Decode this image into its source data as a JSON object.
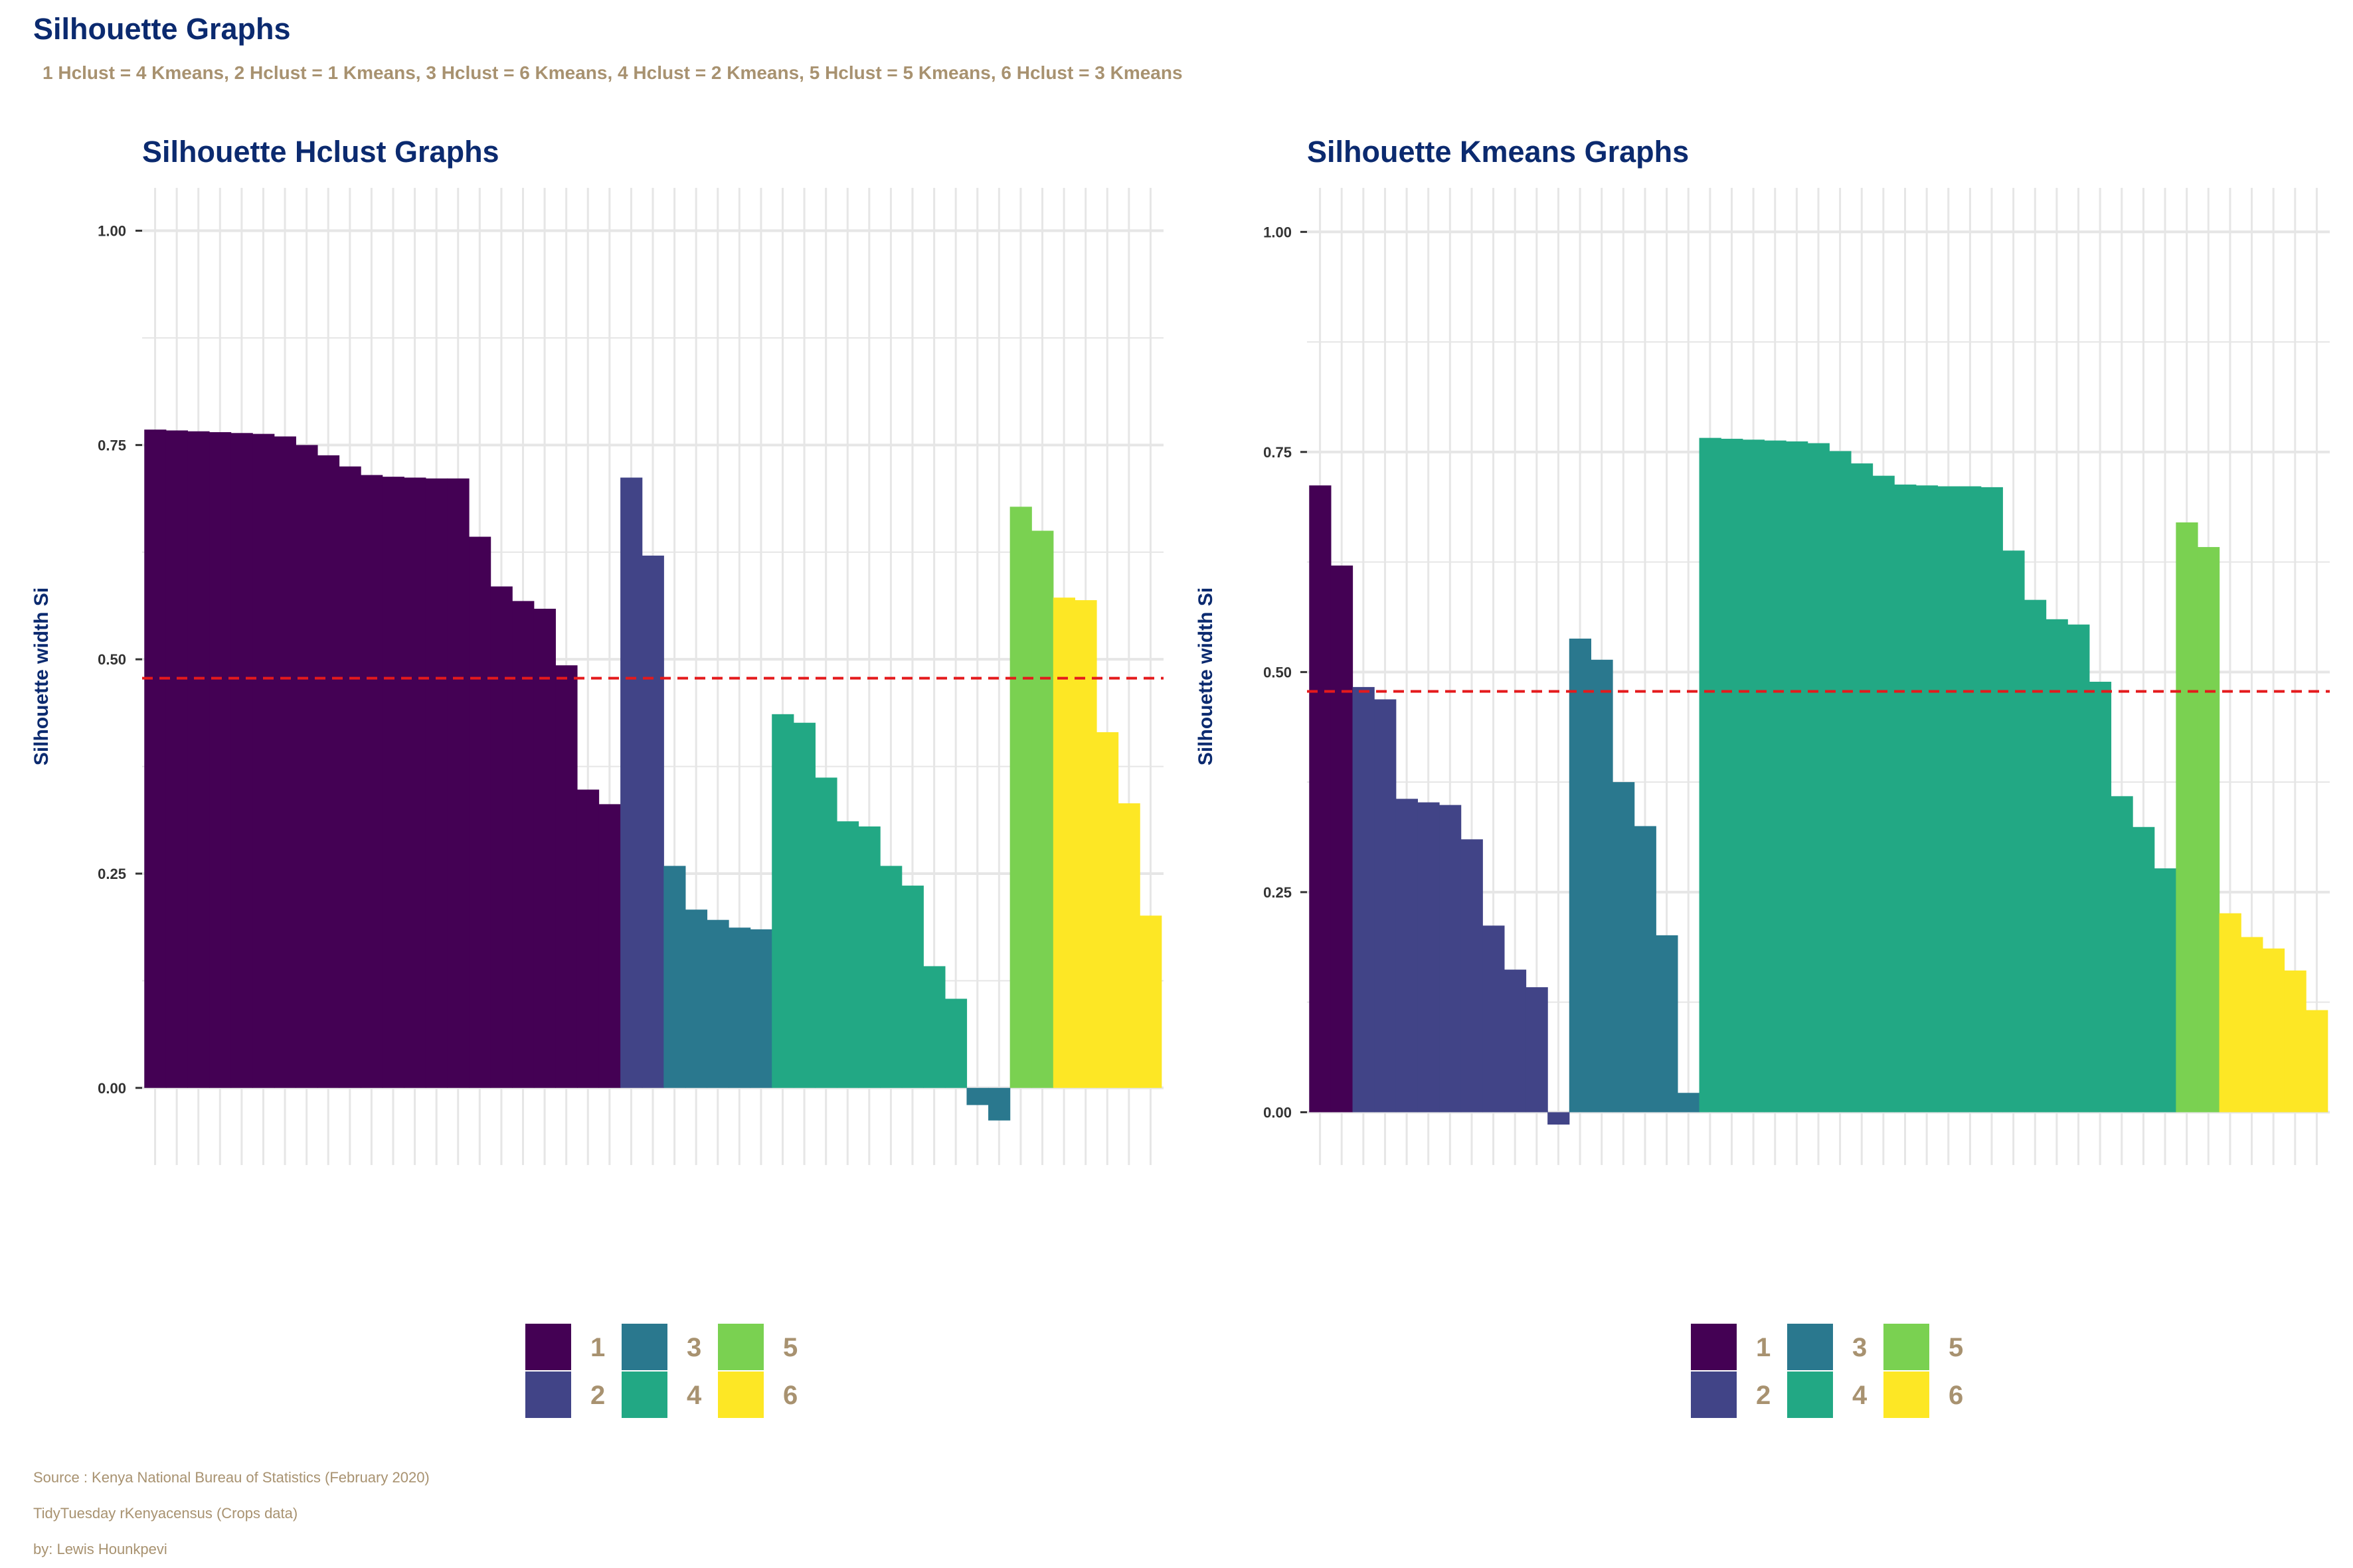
{
  "page": {
    "title": "Silhouette Graphs",
    "subtitle": "1 Hclust = 4 Kmeans, 2 Hclust = 1 Kmeans, 3 Hclust = 6 Kmeans, 4 Hclust = 2 Kmeans, 5 Hclust = 5 Kmeans, 6 Hclust = 3 Kmeans",
    "captions": [
      "Source : Kenya National Bureau of Statistics (February 2020)",
      "TidyTuesday rKenyacensus (Crops data)",
      "by: Lewis Hounkpevi"
    ]
  },
  "colors": {
    "title": "#0b2a6f",
    "muted": "#a89270",
    "grid": "#e6e6e6",
    "reference": "#e41a1c",
    "clusters": {
      "1": "#440154",
      "2": "#414487",
      "3": "#2a788e",
      "4": "#22a884",
      "5": "#7ad151",
      "6": "#fde725"
    }
  },
  "chart_data": [
    {
      "type": "bar",
      "title": "Silhouette Hclust Graphs",
      "xlabel": "",
      "ylabel": "Silhouette width Si",
      "ylim": [
        -0.09,
        1.05
      ],
      "yticks": [
        0.0,
        0.25,
        0.5,
        0.75,
        1.0
      ],
      "ytick_labels": [
        "0.00",
        "0.25",
        "0.50",
        "0.75",
        "1.00"
      ],
      "reference_line": 0.478,
      "grid": true,
      "legend": {
        "position": "bottom",
        "entries": [
          "1",
          "2",
          "3",
          "4",
          "5",
          "6"
        ]
      },
      "clusters": [
        1,
        1,
        1,
        1,
        1,
        1,
        1,
        1,
        1,
        1,
        1,
        1,
        1,
        1,
        1,
        1,
        1,
        1,
        1,
        1,
        1,
        1,
        2,
        2,
        3,
        3,
        3,
        3,
        3,
        4,
        4,
        4,
        4,
        4,
        4,
        4,
        4,
        4,
        3,
        3,
        5,
        5,
        6,
        6,
        6,
        6,
        6
      ],
      "values": [
        0.768,
        0.767,
        0.766,
        0.765,
        0.764,
        0.763,
        0.76,
        0.75,
        0.738,
        0.725,
        0.715,
        0.713,
        0.712,
        0.711,
        0.711,
        0.643,
        0.585,
        0.568,
        0.559,
        0.493,
        0.348,
        0.331,
        0.712,
        0.621,
        0.259,
        0.208,
        0.196,
        0.187,
        0.185,
        0.436,
        0.426,
        0.362,
        0.311,
        0.305,
        0.259,
        0.236,
        0.142,
        0.104,
        -0.02,
        -0.038,
        0.678,
        0.65,
        0.572,
        0.569,
        0.415,
        0.332,
        0.201
      ]
    },
    {
      "type": "bar",
      "title": "Silhouette Kmeans Graphs",
      "xlabel": "",
      "ylabel": "Silhouette width Si",
      "ylim": [
        -0.06,
        1.05
      ],
      "yticks": [
        0.0,
        0.25,
        0.5,
        0.75,
        1.0
      ],
      "ytick_labels": [
        "0.00",
        "0.25",
        "0.50",
        "0.75",
        "1.00"
      ],
      "reference_line": 0.478,
      "grid": true,
      "legend": {
        "position": "bottom",
        "entries": [
          "1",
          "2",
          "3",
          "4",
          "5",
          "6"
        ]
      },
      "clusters": [
        1,
        1,
        2,
        2,
        2,
        2,
        2,
        2,
        2,
        2,
        2,
        2,
        3,
        3,
        3,
        3,
        3,
        3,
        4,
        4,
        4,
        4,
        4,
        4,
        4,
        4,
        4,
        4,
        4,
        4,
        4,
        4,
        4,
        4,
        4,
        4,
        4,
        4,
        4,
        4,
        5,
        5,
        6,
        6,
        6,
        6,
        6
      ],
      "values": [
        0.712,
        0.621,
        0.483,
        0.469,
        0.356,
        0.352,
        0.349,
        0.31,
        0.212,
        0.162,
        0.142,
        -0.014,
        0.538,
        0.514,
        0.375,
        0.325,
        0.201,
        0.022,
        0.766,
        0.765,
        0.764,
        0.763,
        0.762,
        0.76,
        0.751,
        0.737,
        0.723,
        0.713,
        0.712,
        0.711,
        0.711,
        0.71,
        0.638,
        0.582,
        0.56,
        0.554,
        0.489,
        0.359,
        0.324,
        0.277,
        0.67,
        0.642,
        0.226,
        0.199,
        0.186,
        0.161,
        0.116
      ]
    }
  ]
}
